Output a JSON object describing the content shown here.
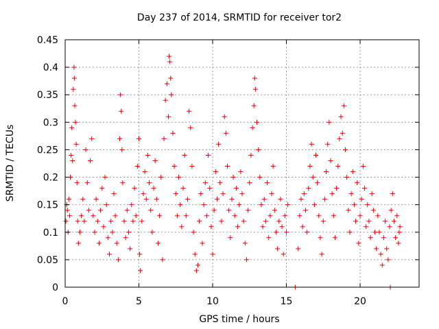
{
  "chart_data": {
    "type": "scatter",
    "title": "Day 237 of 2014, SRMTID for receiver tor2",
    "xlabel": "GPS time / hours",
    "ylabel": "SRMTID / TECUs",
    "xlim": [
      0,
      24
    ],
    "ylim": [
      0,
      0.45
    ],
    "xticks": [
      0,
      5,
      10,
      15,
      20
    ],
    "yticks": [
      0,
      0.05,
      0.1,
      0.15,
      0.2,
      0.25,
      0.3,
      0.35,
      0.4,
      0.45
    ],
    "xtick_labels": [
      "0",
      "5",
      "10",
      "15",
      "20"
    ],
    "ytick_labels": [
      "0",
      "0.05",
      "0.1",
      "0.15",
      "0.2",
      "0.25",
      "0.3",
      "0.35",
      "0.4",
      "0.45"
    ],
    "grid": true,
    "marker": "plus",
    "color": "#e00000",
    "series": [
      {
        "name": "SRMTID",
        "points": [
          [
            0.05,
            0.12
          ],
          [
            0.1,
            0.15
          ],
          [
            0.15,
            0.14
          ],
          [
            0.2,
            0.1
          ],
          [
            0.25,
            0.16
          ],
          [
            0.3,
            0.13
          ],
          [
            0.35,
            0.2
          ],
          [
            0.4,
            0.24
          ],
          [
            0.45,
            0.29
          ],
          [
            0.5,
            0.23
          ],
          [
            0.55,
            0.36
          ],
          [
            0.6,
            0.4
          ],
          [
            0.62,
            0.38
          ],
          [
            0.65,
            0.33
          ],
          [
            0.7,
            0.3
          ],
          [
            0.75,
            0.26
          ],
          [
            0.8,
            0.19
          ],
          [
            0.85,
            0.12
          ],
          [
            0.9,
            0.08
          ],
          [
            1.0,
            0.1
          ],
          [
            1.1,
            0.13
          ],
          [
            1.2,
            0.16
          ],
          [
            1.3,
            0.12
          ],
          [
            1.4,
            0.25
          ],
          [
            1.5,
            0.19
          ],
          [
            1.6,
            0.14
          ],
          [
            1.7,
            0.23
          ],
          [
            1.8,
            0.27
          ],
          [
            1.9,
            0.13
          ],
          [
            2.0,
            0.1
          ],
          [
            2.1,
            0.16
          ],
          [
            2.2,
            0.12
          ],
          [
            2.3,
            0.08
          ],
          [
            2.4,
            0.14
          ],
          [
            2.5,
            0.18
          ],
          [
            2.6,
            0.11
          ],
          [
            2.7,
            0.2
          ],
          [
            2.8,
            0.15
          ],
          [
            2.9,
            0.09
          ],
          [
            3.0,
            0.06
          ],
          [
            3.1,
            0.12
          ],
          [
            3.2,
            0.1
          ],
          [
            3.3,
            0.17
          ],
          [
            3.4,
            0.13
          ],
          [
            3.5,
            0.08
          ],
          [
            3.6,
            0.05
          ],
          [
            3.7,
            0.27
          ],
          [
            3.75,
            0.35
          ],
          [
            3.8,
            0.32
          ],
          [
            3.85,
            0.25
          ],
          [
            3.9,
            0.19
          ],
          [
            4.0,
            0.12
          ],
          [
            4.1,
            0.09
          ],
          [
            4.2,
            0.14
          ],
          [
            4.3,
            0.1
          ],
          [
            4.4,
            0.07
          ],
          [
            4.5,
            0.15
          ],
          [
            4.6,
            0.12
          ],
          [
            4.7,
            0.18
          ],
          [
            4.8,
            0.13
          ],
          [
            4.9,
            0.22
          ],
          [
            5.0,
            0.27
          ],
          [
            5.05,
            0.06
          ],
          [
            5.1,
            0.03
          ],
          [
            5.2,
            0.12
          ],
          [
            5.3,
            0.17
          ],
          [
            5.4,
            0.21
          ],
          [
            5.5,
            0.16
          ],
          [
            5.6,
            0.24
          ],
          [
            5.7,
            0.19
          ],
          [
            5.8,
            0.14
          ],
          [
            5.9,
            0.1
          ],
          [
            6.0,
            0.18
          ],
          [
            6.1,
            0.23
          ],
          [
            6.2,
            0.16
          ],
          [
            6.3,
            0.08
          ],
          [
            6.4,
            0.13
          ],
          [
            6.5,
            0.2
          ],
          [
            6.6,
            0.05
          ],
          [
            6.7,
            0.27
          ],
          [
            6.8,
            0.34
          ],
          [
            6.9,
            0.37
          ],
          [
            7.0,
            0.31
          ],
          [
            7.05,
            0.42
          ],
          [
            7.1,
            0.41
          ],
          [
            7.15,
            0.38
          ],
          [
            7.2,
            0.35
          ],
          [
            7.3,
            0.28
          ],
          [
            7.4,
            0.22
          ],
          [
            7.5,
            0.17
          ],
          [
            7.6,
            0.13
          ],
          [
            7.7,
            0.2
          ],
          [
            7.8,
            0.15
          ],
          [
            7.9,
            0.11
          ],
          [
            8.0,
            0.18
          ],
          [
            8.1,
            0.24
          ],
          [
            8.2,
            0.13
          ],
          [
            8.3,
            0.16
          ],
          [
            8.4,
            0.32
          ],
          [
            8.5,
            0.29
          ],
          [
            8.6,
            0.22
          ],
          [
            8.7,
            0.1
          ],
          [
            8.8,
            0.06
          ],
          [
            8.9,
            0.03
          ],
          [
            9.0,
            0.04
          ],
          [
            9.1,
            0.12
          ],
          [
            9.2,
            0.17
          ],
          [
            9.3,
            0.08
          ],
          [
            9.4,
            0.15
          ],
          [
            9.5,
            0.19
          ],
          [
            9.6,
            0.13
          ],
          [
            9.7,
            0.24
          ],
          [
            9.8,
            0.18
          ],
          [
            9.9,
            0.11
          ],
          [
            10.0,
            0.06
          ],
          [
            10.1,
            0.14
          ],
          [
            10.2,
            0.21
          ],
          [
            10.3,
            0.16
          ],
          [
            10.4,
            0.26
          ],
          [
            10.5,
            0.19
          ],
          [
            10.6,
            0.12
          ],
          [
            10.7,
            0.17
          ],
          [
            10.8,
            0.31
          ],
          [
            10.9,
            0.28
          ],
          [
            11.0,
            0.22
          ],
          [
            11.1,
            0.14
          ],
          [
            11.2,
            0.09
          ],
          [
            11.3,
            0.16
          ],
          [
            11.4,
            0.2
          ],
          [
            11.5,
            0.13
          ],
          [
            11.6,
            0.18
          ],
          [
            11.7,
            0.11
          ],
          [
            11.8,
            0.15
          ],
          [
            11.9,
            0.21
          ],
          [
            12.0,
            0.17
          ],
          [
            12.1,
            0.12
          ],
          [
            12.2,
            0.08
          ],
          [
            12.3,
            0.05
          ],
          [
            12.4,
            0.14
          ],
          [
            12.5,
            0.19
          ],
          [
            12.6,
            0.24
          ],
          [
            12.7,
            0.29
          ],
          [
            12.8,
            0.33
          ],
          [
            12.85,
            0.38
          ],
          [
            12.9,
            0.36
          ],
          [
            13.0,
            0.3
          ],
          [
            13.1,
            0.25
          ],
          [
            13.2,
            0.2
          ],
          [
            13.3,
            0.15
          ],
          [
            13.4,
            0.11
          ],
          [
            13.5,
            0.16
          ],
          [
            13.6,
            0.12
          ],
          [
            13.7,
            0.19
          ],
          [
            13.8,
            0.09
          ],
          [
            13.9,
            0.13
          ],
          [
            14.0,
            0.17
          ],
          [
            14.1,
            0.22
          ],
          [
            14.2,
            0.14
          ],
          [
            14.3,
            0.1
          ],
          [
            14.4,
            0.07
          ],
          [
            14.5,
            0.12
          ],
          [
            14.6,
            0.16
          ],
          [
            14.7,
            0.11
          ],
          [
            14.8,
            0.06
          ],
          [
            14.9,
            0.13
          ],
          [
            15.0,
            0.1
          ],
          [
            15.1,
            0.15
          ],
          [
            15.6,
            0.0
          ],
          [
            15.8,
            0.07
          ],
          [
            15.9,
            0.13
          ],
          [
            16.0,
            0.16
          ],
          [
            16.1,
            0.11
          ],
          [
            16.2,
            0.17
          ],
          [
            16.3,
            0.14
          ],
          [
            16.4,
            0.1
          ],
          [
            16.5,
            0.18
          ],
          [
            16.6,
            0.22
          ],
          [
            16.7,
            0.26
          ],
          [
            16.8,
            0.2
          ],
          [
            16.9,
            0.15
          ],
          [
            17.0,
            0.24
          ],
          [
            17.1,
            0.19
          ],
          [
            17.2,
            0.13
          ],
          [
            17.3,
            0.09
          ],
          [
            17.4,
            0.06
          ],
          [
            17.5,
            0.12
          ],
          [
            17.6,
            0.16
          ],
          [
            17.7,
            0.21
          ],
          [
            17.8,
            0.26
          ],
          [
            17.9,
            0.3
          ],
          [
            18.0,
            0.23
          ],
          [
            18.1,
            0.17
          ],
          [
            18.2,
            0.13
          ],
          [
            18.3,
            0.09
          ],
          [
            18.4,
            0.18
          ],
          [
            18.5,
            0.22
          ],
          [
            18.6,
            0.27
          ],
          [
            18.7,
            0.31
          ],
          [
            18.8,
            0.28
          ],
          [
            18.9,
            0.33
          ],
          [
            19.0,
            0.25
          ],
          [
            19.1,
            0.2
          ],
          [
            19.2,
            0.14
          ],
          [
            19.3,
            0.1
          ],
          [
            19.4,
            0.17
          ],
          [
            19.5,
            0.21
          ],
          [
            19.6,
            0.15
          ],
          [
            19.7,
            0.12
          ],
          [
            19.8,
            0.19
          ],
          [
            19.9,
            0.08
          ],
          [
            20.0,
            0.13
          ],
          [
            20.1,
            0.16
          ],
          [
            20.2,
            0.22
          ],
          [
            20.3,
            0.18
          ],
          [
            20.4,
            0.11
          ],
          [
            20.5,
            0.15
          ],
          [
            20.6,
            0.12
          ],
          [
            20.7,
            0.09
          ],
          [
            20.8,
            0.17
          ],
          [
            20.9,
            0.14
          ],
          [
            21.0,
            0.1
          ],
          [
            21.1,
            0.07
          ],
          [
            21.2,
            0.13
          ],
          [
            21.3,
            0.1
          ],
          [
            21.4,
            0.06
          ],
          [
            21.5,
            0.04
          ],
          [
            21.6,
            0.09
          ],
          [
            21.7,
            0.12
          ],
          [
            21.8,
            0.07
          ],
          [
            21.9,
            0.05
          ],
          [
            22.0,
            0.11
          ],
          [
            22.05,
            0.0
          ],
          [
            22.1,
            0.14
          ],
          [
            22.2,
            0.17
          ],
          [
            22.3,
            0.12
          ],
          [
            22.4,
            0.09
          ],
          [
            22.5,
            0.13
          ],
          [
            22.6,
            0.08
          ],
          [
            22.65,
            0.1
          ],
          [
            22.7,
            0.11
          ]
        ]
      }
    ]
  }
}
